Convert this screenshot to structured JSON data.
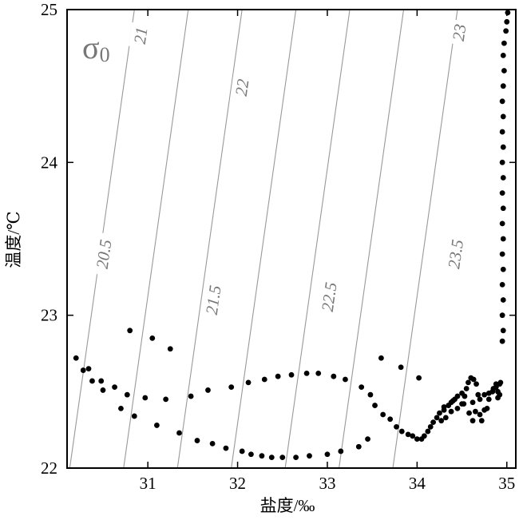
{
  "chart_data": {
    "type": "scatter",
    "title": "",
    "xlabel": "盐度/‰",
    "ylabel": "温度/℃",
    "annotation": {
      "symbol": "σ",
      "subscript": "0"
    },
    "xlim": [
      30.1,
      35.1
    ],
    "ylim": [
      22,
      25
    ],
    "xticks": [
      31,
      32,
      33,
      34,
      35
    ],
    "yticks": [
      22,
      23,
      24,
      25
    ],
    "grid": false,
    "legend": "none",
    "point_color": "#000000",
    "contour_color": "#999999",
    "label_color": "#777777",
    "contours": [
      {
        "value": 20.5,
        "label": "20.5",
        "points": [
          [
            30.13,
            22.0
          ],
          [
            30.85,
            25.0
          ]
        ],
        "label_at": [
          30.51,
          23.4
        ]
      },
      {
        "value": 21,
        "label": "21",
        "points": [
          [
            30.73,
            22.0
          ],
          [
            31.45,
            25.0
          ]
        ],
        "label_at": [
          30.92,
          24.83
        ]
      },
      {
        "value": 21.5,
        "label": "21.5",
        "points": [
          [
            31.33,
            22.0
          ],
          [
            32.05,
            25.0
          ]
        ],
        "label_at": [
          31.73,
          23.1
        ]
      },
      {
        "value": 22,
        "label": "22",
        "points": [
          [
            31.93,
            22.0
          ],
          [
            32.65,
            25.0
          ]
        ],
        "label_at": [
          32.05,
          24.49
        ]
      },
      {
        "value": 22.5,
        "label": "22.5",
        "points": [
          [
            32.53,
            22.0
          ],
          [
            33.25,
            25.0
          ]
        ],
        "label_at": [
          33.02,
          23.12
        ]
      },
      {
        "value": 23,
        "label": "23",
        "points": [
          [
            33.13,
            22.0
          ],
          [
            33.85,
            25.0
          ]
        ],
        "label_at": [
          34.47,
          24.85
        ]
      },
      {
        "value": 23.5,
        "label": "23.5",
        "points": [
          [
            33.73,
            22.0
          ],
          [
            34.45,
            25.0
          ]
        ],
        "label_at": [
          34.43,
          23.4
        ]
      }
    ],
    "points": [
      [
        30.2,
        22.72
      ],
      [
        30.28,
        22.64
      ],
      [
        30.34,
        22.65
      ],
      [
        30.38,
        22.57
      ],
      [
        30.48,
        22.57
      ],
      [
        30.5,
        22.51
      ],
      [
        30.63,
        22.53
      ],
      [
        30.7,
        22.39
      ],
      [
        30.77,
        22.48
      ],
      [
        30.8,
        22.9
      ],
      [
        30.85,
        22.34
      ],
      [
        30.97,
        22.46
      ],
      [
        31.05,
        22.85
      ],
      [
        31.1,
        22.28
      ],
      [
        31.2,
        22.45
      ],
      [
        31.25,
        22.78
      ],
      [
        31.35,
        22.23
      ],
      [
        31.48,
        22.47
      ],
      [
        31.55,
        22.18
      ],
      [
        31.67,
        22.51
      ],
      [
        31.72,
        22.16
      ],
      [
        31.87,
        22.13
      ],
      [
        31.93,
        22.53
      ],
      [
        32.05,
        22.11
      ],
      [
        32.12,
        22.56
      ],
      [
        32.15,
        22.09
      ],
      [
        32.27,
        22.08
      ],
      [
        32.3,
        22.58
      ],
      [
        32.38,
        22.07
      ],
      [
        32.45,
        22.6
      ],
      [
        32.5,
        22.07
      ],
      [
        32.6,
        22.61
      ],
      [
        32.65,
        22.07
      ],
      [
        32.77,
        22.62
      ],
      [
        32.8,
        22.08
      ],
      [
        32.9,
        22.62
      ],
      [
        33.0,
        22.09
      ],
      [
        33.07,
        22.6
      ],
      [
        33.15,
        22.11
      ],
      [
        33.2,
        22.58
      ],
      [
        33.35,
        22.14
      ],
      [
        33.38,
        22.53
      ],
      [
        33.45,
        22.19
      ],
      [
        33.48,
        22.48
      ],
      [
        33.53,
        22.41
      ],
      [
        33.6,
        22.72
      ],
      [
        33.62,
        22.35
      ],
      [
        33.7,
        22.32
      ],
      [
        33.77,
        22.27
      ],
      [
        33.82,
        22.66
      ],
      [
        33.83,
        22.24
      ],
      [
        33.9,
        22.22
      ],
      [
        33.95,
        22.21
      ],
      [
        34.0,
        22.19
      ],
      [
        34.02,
        22.59
      ],
      [
        34.05,
        22.19
      ],
      [
        34.08,
        22.21
      ],
      [
        34.12,
        22.24
      ],
      [
        34.15,
        22.27
      ],
      [
        34.18,
        22.3
      ],
      [
        34.22,
        22.33
      ],
      [
        34.25,
        22.36
      ],
      [
        34.3,
        22.38
      ],
      [
        34.35,
        22.41
      ],
      [
        34.38,
        22.43
      ],
      [
        34.42,
        22.45
      ],
      [
        34.45,
        22.47
      ],
      [
        34.5,
        22.49
      ],
      [
        34.53,
        22.47
      ],
      [
        34.55,
        22.52
      ],
      [
        34.57,
        22.56
      ],
      [
        34.6,
        22.59
      ],
      [
        34.63,
        22.58
      ],
      [
        34.66,
        22.55
      ],
      [
        34.68,
        22.48
      ],
      [
        34.65,
        22.37
      ],
      [
        34.62,
        22.31
      ],
      [
        34.58,
        22.36
      ],
      [
        34.52,
        22.42
      ],
      [
        34.45,
        22.39
      ],
      [
        34.38,
        22.37
      ],
      [
        34.32,
        22.33
      ],
      [
        34.27,
        22.31
      ],
      [
        34.3,
        22.4
      ],
      [
        34.4,
        22.44
      ],
      [
        34.5,
        22.42
      ],
      [
        34.62,
        22.43
      ],
      [
        34.7,
        22.45
      ],
      [
        34.75,
        22.48
      ],
      [
        34.8,
        22.49
      ],
      [
        34.85,
        22.52
      ],
      [
        34.88,
        22.55
      ],
      [
        34.9,
        22.5
      ],
      [
        34.92,
        22.48
      ],
      [
        34.93,
        22.56
      ],
      [
        34.9,
        22.46
      ],
      [
        34.78,
        22.39
      ],
      [
        34.7,
        22.35
      ],
      [
        34.72,
        22.31
      ],
      [
        34.75,
        22.38
      ],
      [
        34.8,
        22.45
      ],
      [
        34.84,
        22.5
      ],
      [
        34.88,
        22.53
      ],
      [
        34.92,
        22.55
      ],
      [
        34.95,
        22.83
      ],
      [
        34.96,
        22.9
      ],
      [
        34.95,
        23.0
      ],
      [
        34.96,
        23.1
      ],
      [
        34.95,
        23.2
      ],
      [
        34.96,
        23.3
      ],
      [
        34.95,
        23.4
      ],
      [
        34.96,
        23.5
      ],
      [
        34.95,
        23.6
      ],
      [
        34.96,
        23.7
      ],
      [
        34.95,
        23.8
      ],
      [
        34.96,
        23.9
      ],
      [
        34.95,
        24.0
      ],
      [
        34.96,
        24.1
      ],
      [
        34.95,
        24.2
      ],
      [
        34.96,
        24.3
      ],
      [
        34.95,
        24.4
      ],
      [
        34.96,
        24.5
      ],
      [
        34.97,
        24.6
      ],
      [
        34.96,
        24.7
      ],
      [
        34.97,
        24.78
      ],
      [
        34.99,
        24.86
      ],
      [
        35.0,
        24.92
      ],
      [
        35.01,
        24.98
      ]
    ]
  }
}
